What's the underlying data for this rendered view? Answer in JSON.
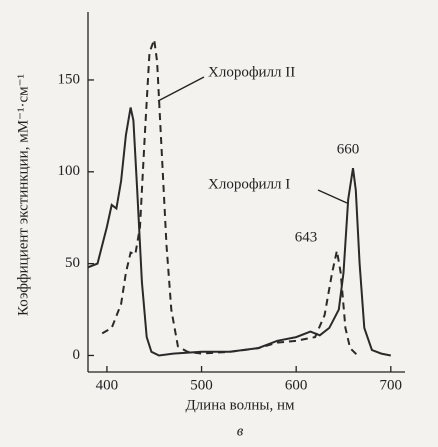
{
  "chart_data": {
    "type": "line",
    "xlabel": "Длина волны, нм",
    "ylabel": "Коэффициент экстинкции, мМ⁻¹·см⁻¹",
    "caption": "в",
    "xlim": [
      380,
      715
    ],
    "ylim": [
      -9,
      187
    ],
    "xticks": [
      400,
      500,
      600,
      700
    ],
    "yticks": [
      0,
      50,
      100,
      150
    ],
    "annotations": [
      "Хлорофилл II",
      "Хлорофилл I",
      "660",
      "643"
    ],
    "series": [
      {
        "name": "Хлорофилл I",
        "color": "#2a2a2a",
        "dash": "none",
        "x": [
          380,
          390,
          400,
          405,
          410,
          415,
          420,
          425,
          428,
          432,
          437,
          442,
          447,
          455,
          470,
          500,
          530,
          560,
          580,
          600,
          615,
          625,
          635,
          645,
          650,
          655,
          660,
          663,
          667,
          672,
          680,
          690,
          700
        ],
        "values": [
          48,
          50,
          70,
          82,
          80,
          95,
          120,
          135,
          128,
          90,
          40,
          10,
          2,
          0,
          1,
          2,
          2,
          4,
          8,
          10,
          13,
          11,
          15,
          25,
          45,
          85,
          102,
          90,
          50,
          15,
          3,
          1,
          0
        ]
      },
      {
        "name": "Хлорофилл II",
        "color": "#2a2a2a",
        "dash": "7 5",
        "x": [
          395,
          405,
          415,
          420,
          425,
          430,
          435,
          440,
          445,
          450,
          453,
          458,
          463,
          468,
          475,
          485,
          500,
          530,
          560,
          580,
          600,
          620,
          630,
          638,
          643,
          647,
          652,
          657,
          665
        ],
        "values": [
          12,
          15,
          28,
          45,
          56,
          55,
          70,
          120,
          165,
          172,
          160,
          110,
          60,
          25,
          5,
          2,
          1,
          2,
          4,
          7,
          8,
          10,
          22,
          45,
          57,
          45,
          15,
          4,
          0
        ]
      }
    ]
  }
}
